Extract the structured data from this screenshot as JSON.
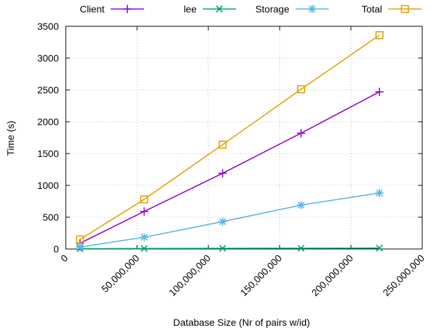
{
  "chart_data": {
    "type": "line",
    "title": "",
    "xlabel": "Database Size (Nr of pairs w/id)",
    "ylabel": "Time (s)",
    "xlim": [
      0,
      250000000
    ],
    "ylim": [
      0,
      3500
    ],
    "x_ticks": [
      0,
      50000000,
      100000000,
      150000000,
      200000000,
      250000000
    ],
    "x_tick_labels": [
      "0",
      "50,000,000",
      "100,000,000",
      "150,000,000",
      "200,000,000",
      "250,000,000"
    ],
    "y_ticks": [
      0,
      500,
      1000,
      1500,
      2000,
      2500,
      3000,
      3500
    ],
    "y_tick_labels": [
      "0",
      "500",
      "1000",
      "1500",
      "2000",
      "2500",
      "3000",
      "3500"
    ],
    "grid": true,
    "legend_position": "top",
    "x": [
      10000000,
      55000000,
      110000000,
      165000000,
      220000000
    ],
    "series": [
      {
        "name": "Client",
        "color": "#9400d3",
        "marker": "plus",
        "values": [
          90,
          590,
          1190,
          1820,
          2470
        ]
      },
      {
        "name": "lee",
        "color": "#009e73",
        "marker": "cross",
        "values": [
          5,
          8,
          10,
          12,
          14
        ]
      },
      {
        "name": "Storage",
        "color": "#56b4e9",
        "marker": "asterisk",
        "values": [
          30,
          185,
          430,
          690,
          880
        ]
      },
      {
        "name": "Total",
        "color": "#e69f00",
        "marker": "square",
        "values": [
          150,
          780,
          1640,
          2510,
          3360
        ]
      }
    ]
  }
}
